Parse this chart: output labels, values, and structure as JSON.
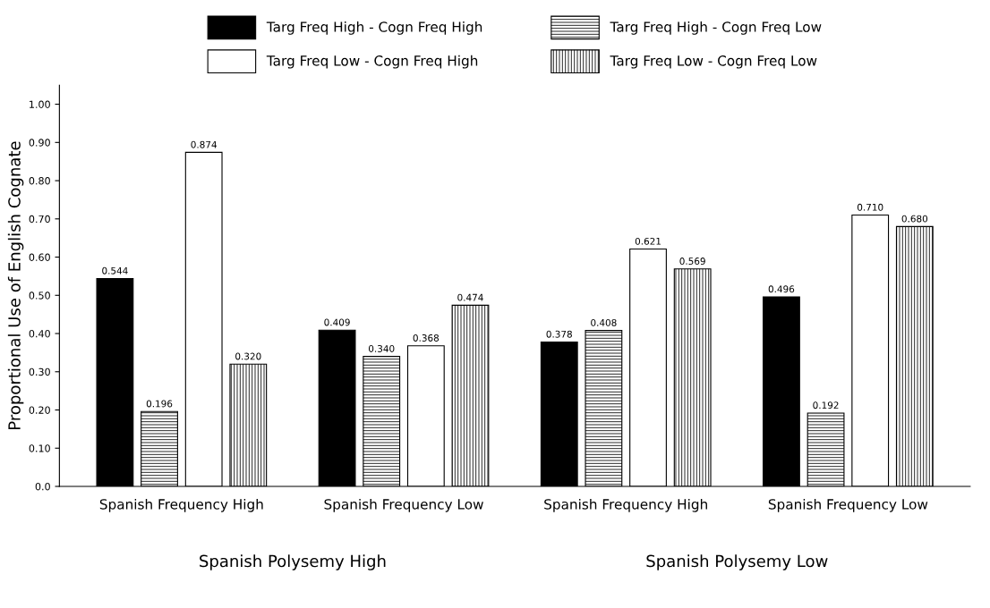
{
  "chart_data": {
    "type": "bar",
    "ylabel": "Proportional Use of English Cognate",
    "categories": [
      "Spanish Frequency High",
      "Spanish Frequency Low",
      "Spanish Frequency High",
      "Spanish Frequency Low"
    ],
    "series": [
      {
        "name": "Targ Freq High - Cogn Freq High",
        "color": "#000000",
        "values": [
          0.544,
          0.409,
          0.378,
          0.496
        ],
        "value_labels": [
          "0.544",
          "0.409",
          "0.378",
          "0.496"
        ]
      },
      {
        "name": "Targ Freq High - Cogn Freq Low",
        "color": "#000000",
        "values": [
          0.196,
          0.34,
          0.408,
          0.192
        ],
        "value_labels": [
          "0.196",
          "0.340",
          "0.408",
          "0.192"
        ]
      },
      {
        "name": "Targ Freq Low - Cogn Freq High",
        "color": "#ffffff",
        "values": [
          0.874,
          0.368,
          0.621,
          0.71
        ],
        "value_labels": [
          "0.874",
          "0.368",
          "0.621",
          "0.710"
        ]
      },
      {
        "name": "Targ Freq Low - Cogn Freq Low",
        "color": "#000000",
        "values": [
          0.32,
          0.474,
          0.569,
          0.68
        ],
        "value_labels": [
          "0.320",
          "0.474",
          "0.569",
          "0.680"
        ]
      }
    ],
    "ylim": [
      0,
      1.05
    ],
    "yticks": [
      {
        "value": 0,
        "label": "0.0"
      },
      {
        "value": 0.1,
        "label": "0.10"
      },
      {
        "value": 0.2,
        "label": "0.20"
      },
      {
        "value": 0.3,
        "label": "0.30"
      },
      {
        "value": 0.4,
        "label": "0.40"
      },
      {
        "value": 0.5,
        "label": "0.50"
      },
      {
        "value": 0.6,
        "label": "0.60"
      },
      {
        "value": 0.7,
        "label": "0.70"
      },
      {
        "value": 0.8,
        "label": "0.80"
      },
      {
        "value": 0.9,
        "label": "0.90"
      },
      {
        "value": 1.0,
        "label": "1.00"
      }
    ],
    "annotations": [
      "Spanish Polysemy High",
      "Spanish Polysemy Low"
    ],
    "grid": false,
    "legend": "top"
  }
}
